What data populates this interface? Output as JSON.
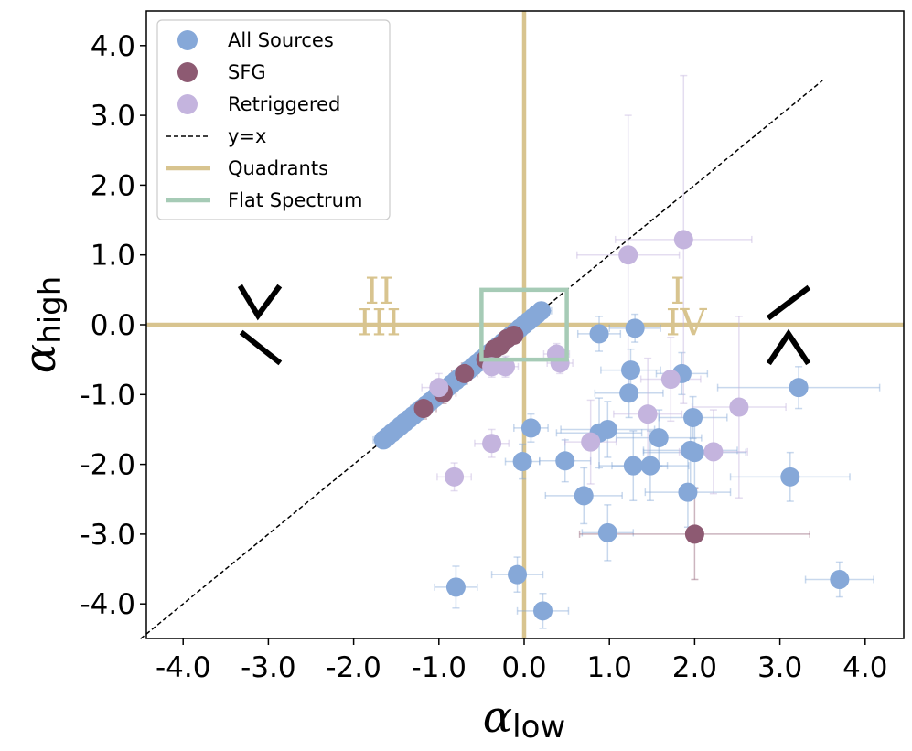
{
  "chart_data": {
    "type": "scatter",
    "title": "",
    "xlabel": {
      "symbol": "α",
      "subscript": "low"
    },
    "ylabel": {
      "symbol": "α",
      "subscript": "high"
    },
    "xlim": [
      -4.5,
      4.4
    ],
    "ylim": [
      -4.5,
      4.5
    ],
    "xticks": [
      -4.0,
      -3.0,
      -2.0,
      -1.0,
      0.0,
      1.0,
      2.0,
      3.0,
      4.0
    ],
    "yticks": [
      -4.0,
      -3.0,
      -2.0,
      -1.0,
      0.0,
      1.0,
      2.0,
      3.0,
      4.0
    ],
    "xtick_labels": [
      "-4.0",
      "-3.0",
      "-2.0",
      "-1.0",
      "0.0",
      "1.0",
      "2.0",
      "3.0",
      "4.0"
    ],
    "ytick_labels": [
      "-4.0",
      "-3.0",
      "-2.0",
      "-1.0",
      "0.0",
      "1.0",
      "2.0",
      "3.0",
      "4.0"
    ],
    "grid": false,
    "legend_position": "top-left",
    "legend": [
      {
        "label": "All Sources",
        "kind": "marker",
        "color": "#86a8d8"
      },
      {
        "label": "SFG",
        "kind": "marker",
        "color": "#8d5a72"
      },
      {
        "label": "Retriggered",
        "kind": "marker",
        "color": "#c4b4de"
      },
      {
        "label": "y=x",
        "kind": "dashed",
        "color": "#000000"
      },
      {
        "label": "Quadrants",
        "kind": "line",
        "color": "#d8c48f"
      },
      {
        "label": "Flat Spectrum",
        "kind": "line",
        "color": "#a6cbb6"
      }
    ],
    "reference_line": {
      "label": "y=x",
      "x": [
        -4.5,
        3.5
      ],
      "y": [
        -4.5,
        3.5
      ]
    },
    "quadrant_lines": {
      "x": 0.0,
      "y": 0.0,
      "color": "#d8c48f"
    },
    "flat_spectrum_box": {
      "x": [
        -0.5,
        0.5
      ],
      "y": [
        -0.5,
        0.5
      ],
      "color": "#a6cbb6"
    },
    "quadrant_labels": [
      {
        "text": "I",
        "x": 1.8,
        "y": 0.3
      },
      {
        "text": "II",
        "x": -1.7,
        "y": 0.3
      },
      {
        "text": "III",
        "x": -1.7,
        "y": -0.15
      },
      {
        "text": "IV",
        "x": 1.9,
        "y": -0.15
      }
    ],
    "series": [
      {
        "name": "All Sources",
        "color": "#86a8d8",
        "diagonal_points": [
          [
            -1.65,
            -1.65
          ],
          [
            -1.6,
            -1.6
          ],
          [
            -1.55,
            -1.55
          ],
          [
            -1.5,
            -1.5
          ],
          [
            -1.45,
            -1.45
          ],
          [
            -1.4,
            -1.4
          ],
          [
            -1.35,
            -1.35
          ],
          [
            -1.3,
            -1.3
          ],
          [
            -1.25,
            -1.25
          ],
          [
            -1.2,
            -1.2
          ],
          [
            -1.15,
            -1.15
          ],
          [
            -1.1,
            -1.1
          ],
          [
            -1.05,
            -1.05
          ],
          [
            -1.0,
            -1.0
          ],
          [
            -0.95,
            -0.95
          ],
          [
            -0.9,
            -0.9
          ],
          [
            -0.85,
            -0.85
          ],
          [
            -0.8,
            -0.8
          ],
          [
            -0.75,
            -0.75
          ],
          [
            -0.7,
            -0.7
          ],
          [
            -0.65,
            -0.65
          ],
          [
            -0.6,
            -0.6
          ],
          [
            -0.55,
            -0.55
          ],
          [
            -0.5,
            -0.5
          ],
          [
            -0.45,
            -0.45
          ],
          [
            -0.4,
            -0.4
          ],
          [
            -0.35,
            -0.35
          ],
          [
            -0.3,
            -0.3
          ],
          [
            -0.25,
            -0.25
          ],
          [
            -0.2,
            -0.2
          ],
          [
            -0.15,
            -0.15
          ],
          [
            -0.1,
            -0.1
          ],
          [
            -0.05,
            -0.05
          ],
          [
            0.0,
            0.0
          ],
          [
            0.05,
            0.05
          ],
          [
            0.1,
            0.1
          ],
          [
            0.15,
            0.15
          ],
          [
            0.2,
            0.2
          ]
        ],
        "points": [
          {
            "x": 0.88,
            "y": -0.13,
            "xerr": 0.25,
            "yerr": 0.25
          },
          {
            "x": 1.3,
            "y": -0.05,
            "xerr": 0.3,
            "yerr": 0.2
          },
          {
            "x": 1.25,
            "y": -0.65,
            "xerr": 0.35,
            "yerr": 0.3
          },
          {
            "x": 1.23,
            "y": -0.98,
            "xerr": 0.4,
            "yerr": 0.35
          },
          {
            "x": 1.85,
            "y": -0.7,
            "xerr": 0.3,
            "yerr": 0.3
          },
          {
            "x": 3.22,
            "y": -0.9,
            "xerr": 0.95,
            "yerr": 0.3
          },
          {
            "x": 0.08,
            "y": -1.48,
            "xerr": 0.2,
            "yerr": 0.2
          },
          {
            "x": 0.88,
            "y": -1.55,
            "xerr": 0.5,
            "yerr": 0.5
          },
          {
            "x": 0.98,
            "y": -1.5,
            "xerr": 0.55,
            "yerr": 0.4
          },
          {
            "x": 1.98,
            "y": -1.33,
            "xerr": 0.4,
            "yerr": 0.3
          },
          {
            "x": 1.58,
            "y": -1.62,
            "xerr": 0.5,
            "yerr": 0.4
          },
          {
            "x": 1.95,
            "y": -1.8,
            "xerr": 0.55,
            "yerr": 0.5
          },
          {
            "x": 2.0,
            "y": -1.83,
            "xerr": 0.6,
            "yerr": 0.5
          },
          {
            "x": -0.02,
            "y": -1.96,
            "xerr": 0.2,
            "yerr": 0.25
          },
          {
            "x": 0.48,
            "y": -1.95,
            "xerr": 0.3,
            "yerr": 0.3
          },
          {
            "x": 1.28,
            "y": -2.02,
            "xerr": 0.4,
            "yerr": 0.5
          },
          {
            "x": 1.48,
            "y": -2.02,
            "xerr": 0.45,
            "yerr": 0.5
          },
          {
            "x": 3.12,
            "y": -2.18,
            "xerr": 0.7,
            "yerr": 0.35
          },
          {
            "x": 0.7,
            "y": -2.45,
            "xerr": 0.45,
            "yerr": 0.4
          },
          {
            "x": 1.92,
            "y": -2.4,
            "xerr": 0.5,
            "yerr": 0.5
          },
          {
            "x": 0.98,
            "y": -2.98,
            "xerr": 0.3,
            "yerr": 0.4
          },
          {
            "x": -0.08,
            "y": -3.58,
            "xerr": 0.3,
            "yerr": 0.25
          },
          {
            "x": -0.8,
            "y": -3.76,
            "xerr": 0.25,
            "yerr": 0.3
          },
          {
            "x": 0.22,
            "y": -4.1,
            "xerr": 0.3,
            "yerr": 0.25
          },
          {
            "x": 3.7,
            "y": -3.65,
            "xerr": 0.4,
            "yerr": 0.25
          }
        ]
      },
      {
        "name": "SFG",
        "color": "#8d5a72",
        "points": [
          {
            "x": -1.18,
            "y": -1.2,
            "xerr": 0.15,
            "yerr": 0.15
          },
          {
            "x": -0.95,
            "y": -0.98,
            "xerr": 0.15,
            "yerr": 0.15
          },
          {
            "x": -0.7,
            "y": -0.7,
            "xerr": 0.15,
            "yerr": 0.15
          },
          {
            "x": -0.45,
            "y": -0.5,
            "xerr": 0.12,
            "yerr": 0.12
          },
          {
            "x": -0.35,
            "y": -0.35,
            "xerr": 0.12,
            "yerr": 0.12
          },
          {
            "x": -0.28,
            "y": -0.3,
            "xerr": 0.1,
            "yerr": 0.1
          },
          {
            "x": -0.2,
            "y": -0.2,
            "xerr": 0.1,
            "yerr": 0.1
          },
          {
            "x": -0.12,
            "y": -0.15,
            "xerr": 0.1,
            "yerr": 0.1
          },
          {
            "x": 2.0,
            "y": -3.0,
            "xerr": 1.35,
            "yerr": 0.65
          }
        ]
      },
      {
        "name": "Retriggered",
        "color": "#c4b4de",
        "points": [
          {
            "x": 1.22,
            "y": 1.0,
            "xerr": 0.6,
            "yerr": 2.0
          },
          {
            "x": 1.87,
            "y": 1.22,
            "xerr": 0.8,
            "yerr": 2.35
          },
          {
            "x": -1.0,
            "y": -0.9,
            "xerr": 0.2,
            "yerr": 0.2
          },
          {
            "x": -0.38,
            "y": -0.6,
            "xerr": 0.15,
            "yerr": 0.15
          },
          {
            "x": -0.22,
            "y": -0.6,
            "xerr": 0.15,
            "yerr": 0.15
          },
          {
            "x": 0.38,
            "y": -0.42,
            "xerr": 0.15,
            "yerr": 0.15
          },
          {
            "x": 0.42,
            "y": -0.55,
            "xerr": 0.15,
            "yerr": 0.15
          },
          {
            "x": 1.72,
            "y": -0.78,
            "xerr": 0.35,
            "yerr": 0.6
          },
          {
            "x": 2.52,
            "y": -1.18,
            "xerr": 0.55,
            "yerr": 1.3
          },
          {
            "x": 1.45,
            "y": -1.28,
            "xerr": 0.4,
            "yerr": 0.8
          },
          {
            "x": 0.78,
            "y": -1.68,
            "xerr": 0.3,
            "yerr": 0.6
          },
          {
            "x": 2.22,
            "y": -1.82,
            "xerr": 0.4,
            "yerr": 0.6
          },
          {
            "x": -0.38,
            "y": -1.7,
            "xerr": 0.2,
            "yerr": 0.2
          },
          {
            "x": -0.82,
            "y": -2.18,
            "xerr": 0.2,
            "yerr": 0.2
          }
        ]
      }
    ]
  }
}
